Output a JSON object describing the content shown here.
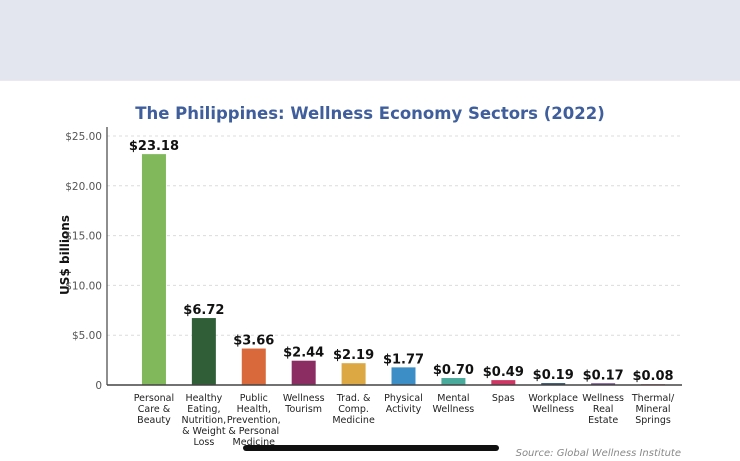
{
  "chart_data": {
    "type": "bar",
    "title": "The Philippines: Wellness Economy Sectors (2022)",
    "ylabel": "US$ billions",
    "xlabel": "",
    "ylim": [
      0,
      25
    ],
    "yticks": [
      0,
      5,
      10,
      15,
      20,
      25
    ],
    "ytick_labels": [
      "0",
      "$5.00",
      "$10.00",
      "$15.00",
      "$20.00",
      "$25.00"
    ],
    "grid": "horizontal dashed",
    "categories": [
      [
        "Personal",
        "Care &",
        "Beauty"
      ],
      [
        "Healthy",
        "Eating,",
        "Nutrition,",
        "& Weight",
        "Loss"
      ],
      [
        "Public",
        "Health,",
        "Prevention,",
        "& Personal",
        "Medicine"
      ],
      [
        "Wellness",
        "Tourism"
      ],
      [
        "Trad. &",
        "Comp.",
        "Medicine"
      ],
      [
        "Physical",
        "Activity"
      ],
      [
        "Mental",
        "Wellness"
      ],
      [
        "Spas"
      ],
      [
        "Workplace",
        "Wellness"
      ],
      [
        "Wellness",
        "Real",
        "Estate"
      ],
      [
        "Thermal/",
        "Mineral",
        "Springs"
      ]
    ],
    "values": [
      23.18,
      6.72,
      3.66,
      2.44,
      2.19,
      1.77,
      0.7,
      0.49,
      0.19,
      0.17,
      0.08
    ],
    "data_labels": [
      "$23.18",
      "$6.72",
      "$3.66",
      "$2.44",
      "$2.19",
      "$1.77",
      "$0.70",
      "$0.49",
      "$0.19",
      "$0.17",
      "$0.08"
    ],
    "colors": [
      "#80b85b",
      "#2f5e37",
      "#d9683a",
      "#8b2d63",
      "#dca844",
      "#3b8fc6",
      "#4aab9c",
      "#cc3863",
      "#2d4f6d",
      "#6a3a8e",
      "#d9545e"
    ],
    "title_color": "#3f5e9c",
    "source": "Source: Global Wellness Institute"
  }
}
